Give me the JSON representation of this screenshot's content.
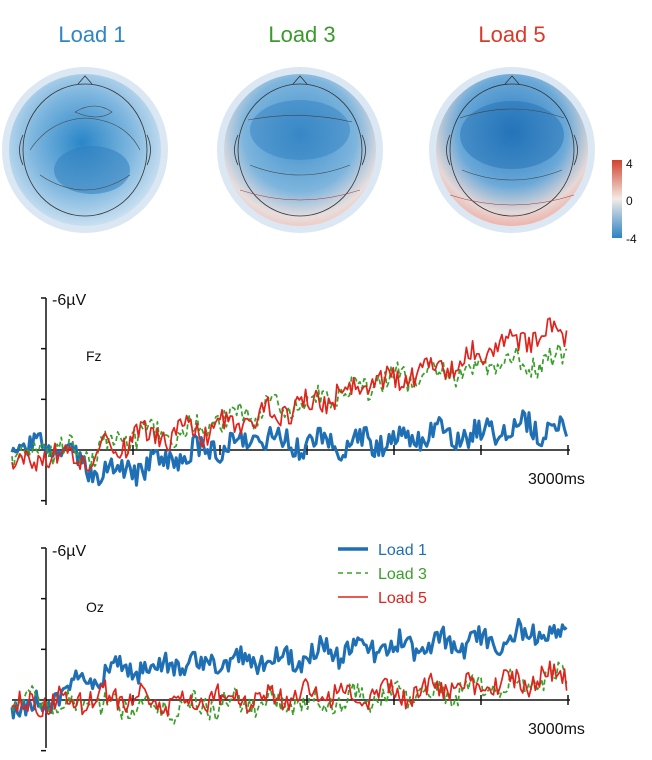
{
  "topomaps": [
    {
      "title": "Load 1",
      "color": "#2f86c4"
    },
    {
      "title": "Load 3",
      "color": "#3a9a2b"
    },
    {
      "title": "Load 5",
      "color": "#d83a2a"
    }
  ],
  "colorbar": {
    "max": "4",
    "mid": "0",
    "min": "-4",
    "colors": [
      "#d2432c",
      "#f2ece7",
      "#2b82c4"
    ]
  },
  "chart_data": [
    {
      "type": "line",
      "channel": "Fz",
      "y_tick_label": "-6µV",
      "x_end_label": "3000ms",
      "x_range_ms": [
        0,
        3000
      ],
      "y_range_uv": [
        -6,
        2
      ],
      "y_inverted": true,
      "series": [
        {
          "name": "Load 1",
          "color": "#1f6fb4",
          "dash": "solid",
          "x": [
            -200,
            0,
            250,
            500,
            750,
            1000,
            1250,
            1500,
            1750,
            2000,
            2250,
            2500,
            2750,
            3000
          ],
          "y": [
            0.1,
            -0.2,
            0.8,
            0.8,
            0.3,
            -0.2,
            -0.5,
            -0.2,
            -0.3,
            -0.4,
            -0.7,
            -0.6,
            -1.0,
            -0.6
          ]
        },
        {
          "name": "Load 3",
          "color": "#3aa02a",
          "dash": "dashed",
          "x": [
            -200,
            0,
            250,
            500,
            750,
            1000,
            1250,
            1500,
            1750,
            2000,
            2250,
            2500,
            2750,
            3000
          ],
          "y": [
            0.2,
            -0.1,
            0.1,
            -0.6,
            -0.7,
            -1.1,
            -1.6,
            -1.9,
            -2.4,
            -2.8,
            -3.0,
            -3.2,
            -3.4,
            -3.6
          ]
        },
        {
          "name": "Load 5",
          "color": "#e0231c",
          "dash": "solid",
          "x": [
            -200,
            0,
            250,
            500,
            750,
            1000,
            1250,
            1500,
            1750,
            2000,
            2250,
            2500,
            2750,
            3000
          ],
          "y": [
            0.6,
            0.2,
            0.3,
            -0.5,
            -0.6,
            -0.9,
            -1.4,
            -1.8,
            -2.3,
            -2.8,
            -3.2,
            -3.8,
            -4.4,
            -4.7
          ]
        }
      ]
    },
    {
      "type": "line",
      "channel": "Oz",
      "y_tick_label": "-6µV",
      "x_end_label": "3000ms",
      "x_range_ms": [
        0,
        3000
      ],
      "y_range_uv": [
        -6,
        1
      ],
      "y_inverted": true,
      "legend": {
        "position": "top-right",
        "entries": [
          "Load 1",
          "Load 3",
          "Load 5"
        ]
      },
      "series": [
        {
          "name": "Load 1",
          "color": "#1f6fb4",
          "dash": "solid",
          "x": [
            -200,
            0,
            250,
            500,
            750,
            1000,
            1250,
            1500,
            1750,
            2000,
            2250,
            2500,
            2750,
            3000
          ],
          "y": [
            0.3,
            0.1,
            -0.9,
            -1.3,
            -1.4,
            -1.5,
            -1.6,
            -1.8,
            -2.0,
            -2.1,
            -2.2,
            -2.3,
            -2.6,
            -2.7
          ]
        },
        {
          "name": "Load 3",
          "color": "#3aa02a",
          "dash": "dashed",
          "x": [
            -200,
            0,
            250,
            500,
            750,
            1000,
            1250,
            1500,
            1750,
            2000,
            2250,
            2500,
            2750,
            3000
          ],
          "y": [
            0.2,
            0.0,
            0.2,
            0.3,
            0.3,
            0.2,
            0.1,
            0.1,
            0.0,
            -0.2,
            -0.3,
            -0.5,
            -0.7,
            -0.9
          ]
        },
        {
          "name": "Load 5",
          "color": "#e0231c",
          "dash": "solid",
          "x": [
            -200,
            0,
            250,
            500,
            750,
            1000,
            1250,
            1500,
            1750,
            2000,
            2250,
            2500,
            2750,
            3000
          ],
          "y": [
            0.4,
            0.0,
            -0.1,
            -0.1,
            0.1,
            -0.1,
            -0.1,
            -0.3,
            -0.2,
            -0.3,
            -0.4,
            -0.5,
            -0.8,
            -1.0
          ]
        }
      ]
    }
  ]
}
